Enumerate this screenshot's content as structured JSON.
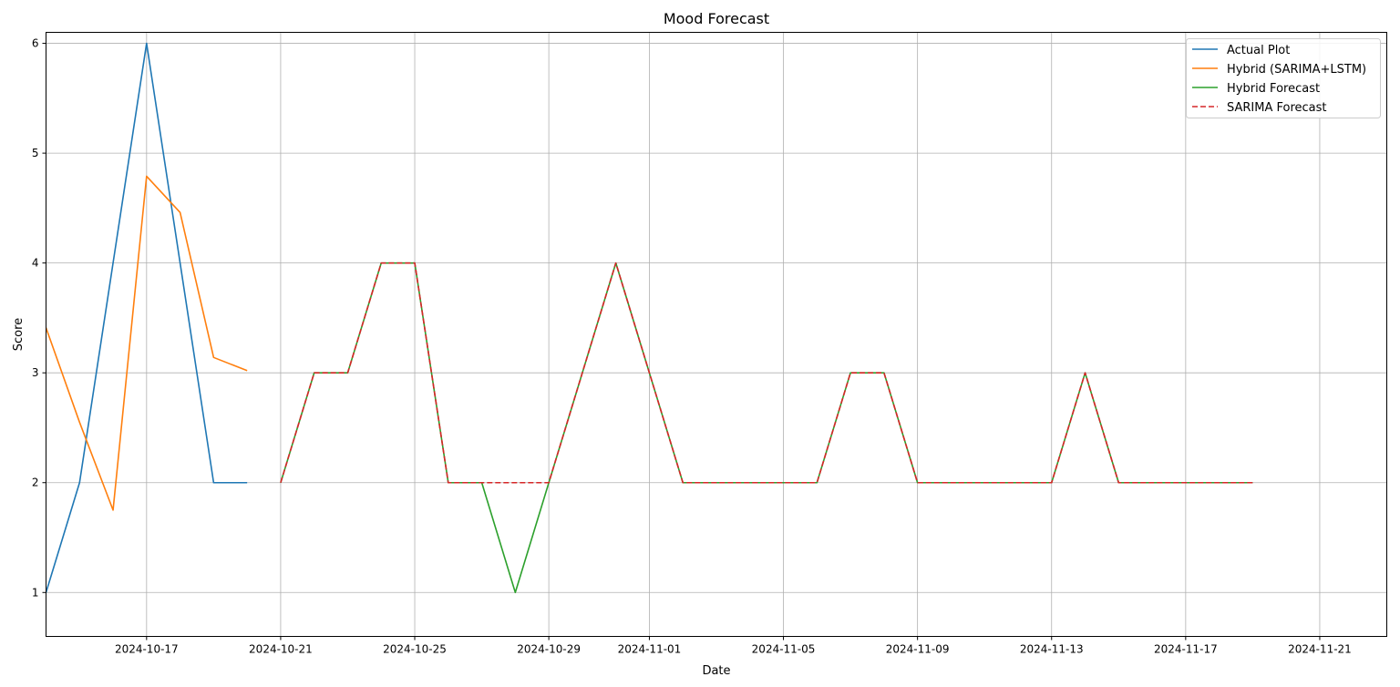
{
  "chart_data": {
    "type": "line",
    "title": "Mood Forecast",
    "xlabel": "Date",
    "ylabel": "Score",
    "xlim": [
      "2024-10-14",
      "2024-11-23"
    ],
    "ylim": [
      0.6,
      6.1
    ],
    "grid": true,
    "legend_position": "top-right",
    "x_ticks": [
      "2024-10-17",
      "2024-10-21",
      "2024-10-25",
      "2024-10-29",
      "2024-11-01",
      "2024-11-05",
      "2024-11-09",
      "2024-11-13",
      "2024-11-17",
      "2024-11-21"
    ],
    "y_ticks": [
      1,
      2,
      3,
      4,
      5,
      6
    ],
    "series": [
      {
        "name": "Actual Plot",
        "color": "#1f77b4",
        "style": "solid",
        "x": [
          "2024-10-13",
          "2024-10-14",
          "2024-10-15",
          "2024-10-16",
          "2024-10-17",
          "2024-10-18",
          "2024-10-19",
          "2024-10-20"
        ],
        "y": [
          2.0,
          1.0,
          2.0,
          4.0,
          6.0,
          4.0,
          2.0,
          2.0
        ]
      },
      {
        "name": "Hybrid (SARIMA+LSTM)",
        "color": "#ff7f0e",
        "style": "solid",
        "x": [
          "2024-10-13",
          "2024-10-14",
          "2024-10-15",
          "2024-10-16",
          "2024-10-17",
          "2024-10-18",
          "2024-10-19",
          "2024-10-20"
        ],
        "y": [
          2.9,
          3.41,
          2.55,
          1.75,
          4.79,
          4.46,
          3.14,
          3.02
        ]
      },
      {
        "name": "Hybrid Forecast",
        "color": "#2ca02c",
        "style": "solid",
        "x": [
          "2024-10-21",
          "2024-10-22",
          "2024-10-23",
          "2024-10-24",
          "2024-10-25",
          "2024-10-26",
          "2024-10-27",
          "2024-10-28",
          "2024-10-29",
          "2024-10-30",
          "2024-10-31",
          "2024-11-01",
          "2024-11-02",
          "2024-11-03",
          "2024-11-04",
          "2024-11-05",
          "2024-11-06",
          "2024-11-07",
          "2024-11-08",
          "2024-11-09",
          "2024-11-10",
          "2024-11-11",
          "2024-11-12",
          "2024-11-13",
          "2024-11-14",
          "2024-11-15",
          "2024-11-16",
          "2024-11-17",
          "2024-11-18",
          "2024-11-19"
        ],
        "y": [
          2,
          3,
          3,
          4,
          4,
          2,
          2,
          1,
          2,
          3,
          4,
          3,
          2,
          2,
          2,
          2,
          2,
          3,
          3,
          2,
          2,
          2,
          2,
          2,
          3,
          2,
          2,
          2,
          2,
          2
        ]
      },
      {
        "name": "SARIMA Forecast",
        "color": "#d62728",
        "style": "dashed",
        "x": [
          "2024-10-21",
          "2024-10-22",
          "2024-10-23",
          "2024-10-24",
          "2024-10-25",
          "2024-10-26",
          "2024-10-27",
          "2024-10-28",
          "2024-10-29",
          "2024-10-30",
          "2024-10-31",
          "2024-11-01",
          "2024-11-02",
          "2024-11-03",
          "2024-11-04",
          "2024-11-05",
          "2024-11-06",
          "2024-11-07",
          "2024-11-08",
          "2024-11-09",
          "2024-11-10",
          "2024-11-11",
          "2024-11-12",
          "2024-11-13",
          "2024-11-14",
          "2024-11-15",
          "2024-11-16",
          "2024-11-17",
          "2024-11-18",
          "2024-11-19"
        ],
        "y": [
          2,
          3,
          3,
          4,
          4,
          2,
          2,
          2,
          2,
          3,
          4,
          3,
          2,
          2,
          2,
          2,
          2,
          3,
          3,
          2,
          2,
          2,
          2,
          2,
          3,
          2,
          2,
          2,
          2,
          2
        ]
      }
    ]
  }
}
